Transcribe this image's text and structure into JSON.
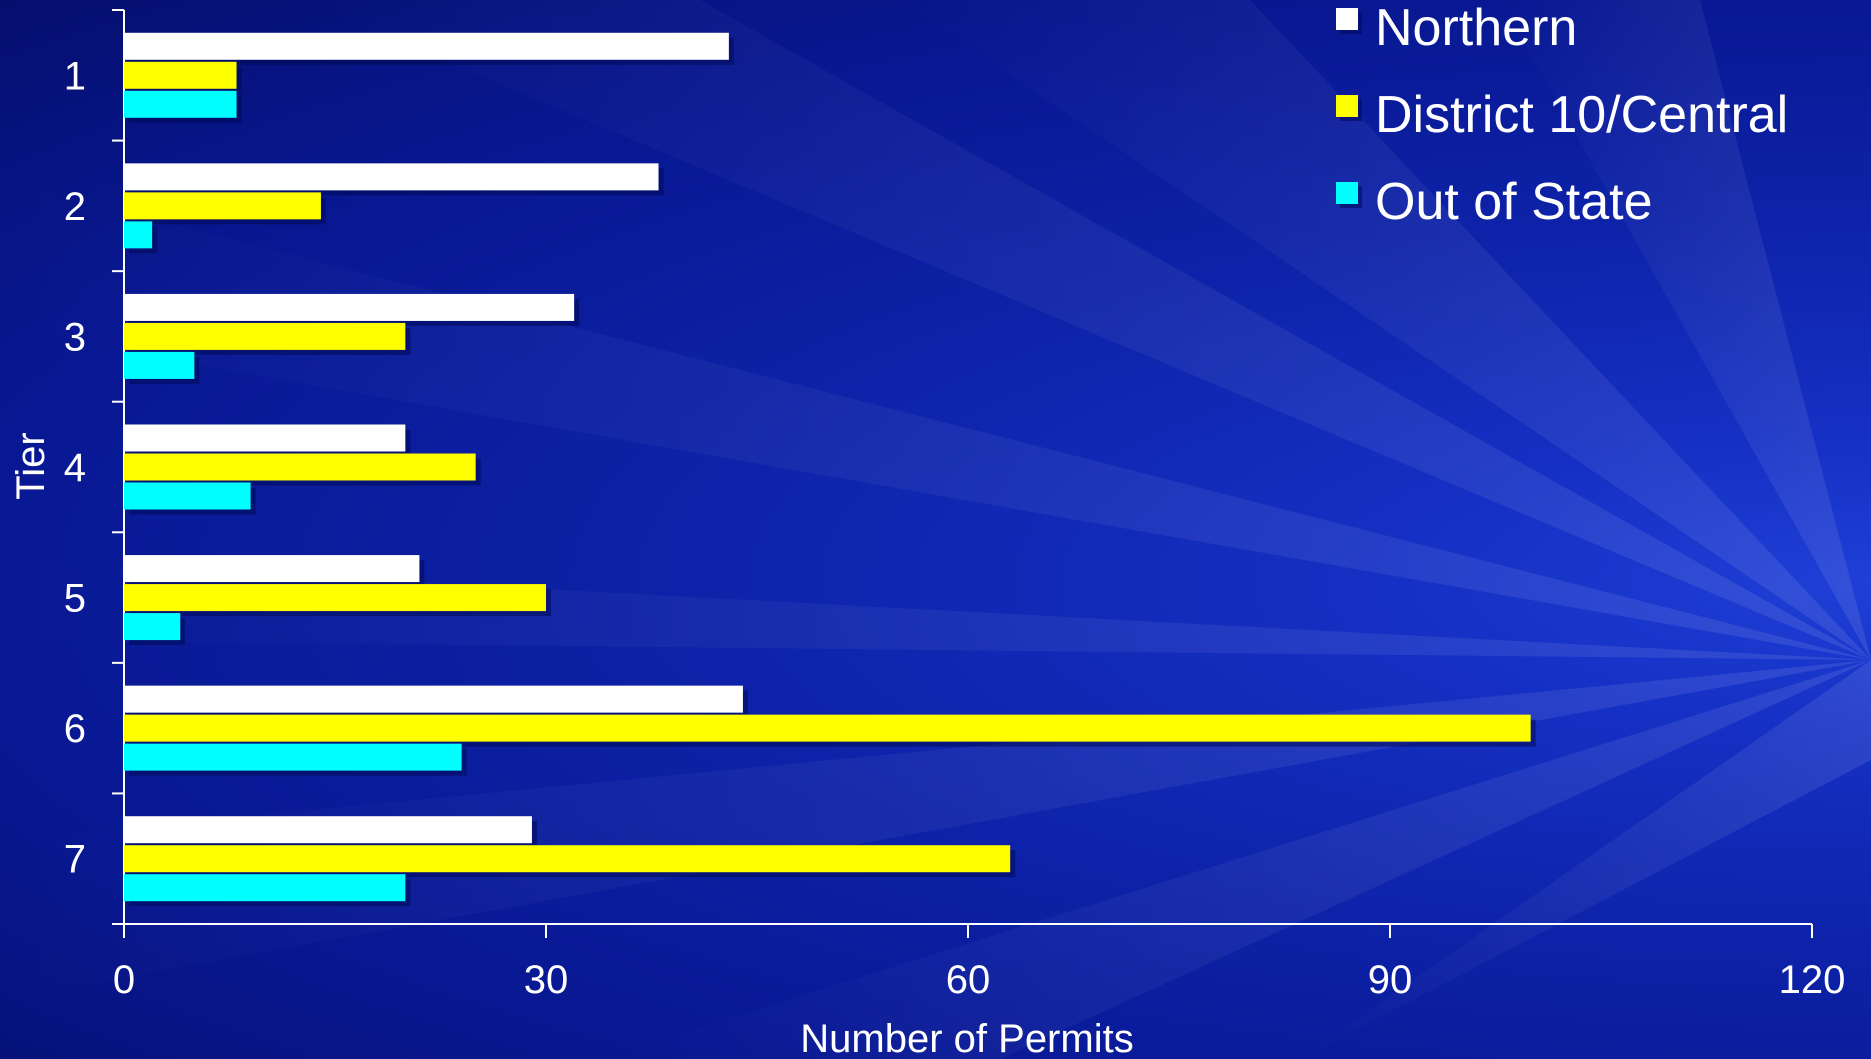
{
  "chart_data": {
    "type": "bar",
    "orientation": "horizontal",
    "title": "",
    "xlabel": "Number of Permits",
    "ylabel": "Tier",
    "categories": [
      "1",
      "2",
      "3",
      "4",
      "5",
      "6",
      "7"
    ],
    "xlim": [
      0,
      120
    ],
    "xticks": [
      "0",
      "30",
      "60",
      "90",
      "120"
    ],
    "grid": false,
    "legend_position": "top-right",
    "series": [
      {
        "name": "Northern",
        "color": "#ffffff",
        "values": [
          43,
          38,
          32,
          20,
          21,
          44,
          29
        ]
      },
      {
        "name": "District 10/Central",
        "color": "#ffff00",
        "values": [
          8,
          14,
          20,
          25,
          30,
          100,
          63
        ]
      },
      {
        "name": "Out of State",
        "color": "#00ffff",
        "values": [
          8,
          2,
          5,
          9,
          4,
          24,
          20
        ]
      }
    ]
  }
}
